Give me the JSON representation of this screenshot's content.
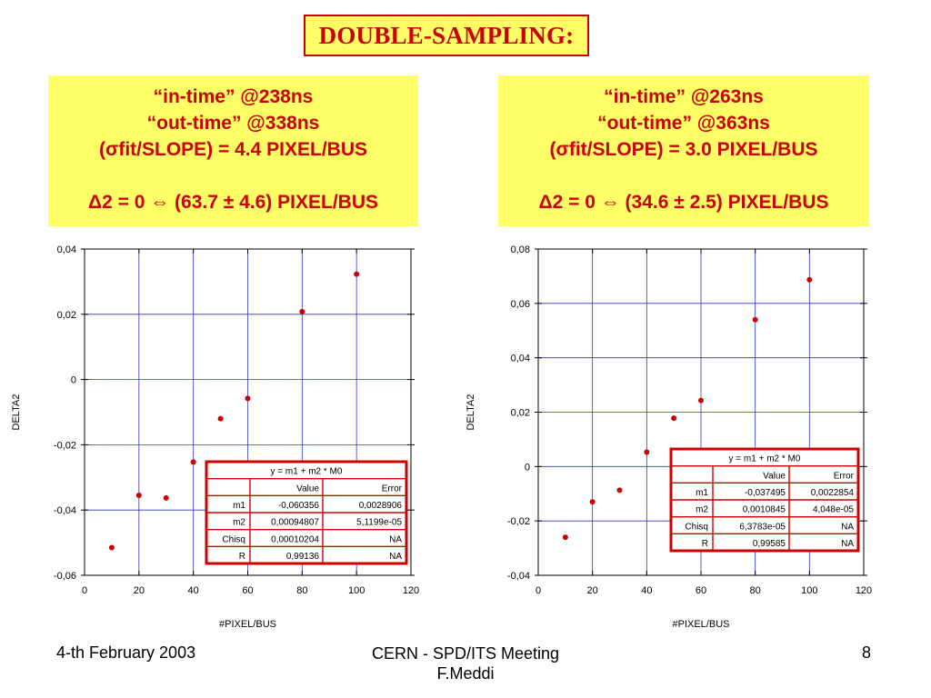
{
  "slide": {
    "title": "DOUBLE-SAMPLING:",
    "footer": {
      "date": "4-th February 2003",
      "meeting": "CERN - SPD/ITS Meeting",
      "author": "F.Meddi",
      "page": "8"
    }
  },
  "panels": [
    {
      "lines": [
        "“in-time” @238ns",
        "“out-time” @338ns",
        "(σfit/SLOPE) = 4.4 PIXEL/BUS"
      ],
      "result": "Δ2 = 0 ⇔ (63.7 ± 4.6) PIXEL/BUS",
      "fit_table": {
        "equation": "y = m1 + m2 * M0",
        "headers": [
          "",
          "Value",
          "Error"
        ],
        "rows": [
          [
            "m1",
            "-0,060356",
            "0,0028906"
          ],
          [
            "m2",
            "0,00094807",
            "5,1199e-05"
          ],
          [
            "Chisq",
            "0,00010204",
            "NA"
          ],
          [
            "R",
            "0,99136",
            "NA"
          ]
        ]
      }
    },
    {
      "lines": [
        "“in-time” @263ns",
        "“out-time” @363ns",
        "(σfit/SLOPE) = 3.0 PIXEL/BUS"
      ],
      "result": "Δ2 = 0 ⇔ (34.6 ± 2.5) PIXEL/BUS",
      "fit_table": {
        "equation": "y = m1 + m2 * M0",
        "headers": [
          "",
          "Value",
          "Error"
        ],
        "rows": [
          [
            "m1",
            "-0,037495",
            "0,0022854"
          ],
          [
            "m2",
            "0,0010845",
            "4,048e-05"
          ],
          [
            "Chisq",
            "6,3783e-05",
            "NA"
          ],
          [
            "R",
            "0,99585",
            "NA"
          ]
        ]
      }
    }
  ],
  "colors": {
    "accent": "#cc0000",
    "highlight": "#ffff66",
    "grid": "#3333cc",
    "marker": "#cc0000"
  },
  "chart_data": [
    {
      "type": "scatter",
      "xlabel": "#PIXEL/BUS",
      "ylabel": "DELTA2",
      "xlim": [
        0,
        120
      ],
      "ylim": [
        -0.06,
        0.04
      ],
      "xticks": [
        0,
        20,
        40,
        60,
        80,
        100,
        120
      ],
      "xtick_labels": [
        "0",
        "20",
        "40",
        "60",
        "80",
        "100",
        "120"
      ],
      "yticks": [
        -0.06,
        -0.04,
        -0.02,
        0,
        0.02,
        0.04
      ],
      "ytick_labels": [
        "-0,06",
        "-0,04",
        "-0,02",
        "0",
        "0,02",
        "0,04"
      ],
      "grid": true,
      "x": [
        10,
        20,
        30,
        40,
        50,
        60,
        80,
        100
      ],
      "y": [
        -0.0515,
        -0.0355,
        -0.0363,
        -0.0253,
        -0.012,
        -0.0058,
        0.0208,
        0.0323
      ]
    },
    {
      "type": "scatter",
      "xlabel": "#PIXEL/BUS",
      "ylabel": "DELTA2",
      "xlim": [
        0,
        120
      ],
      "ylim": [
        -0.04,
        0.08
      ],
      "xticks": [
        0,
        20,
        40,
        60,
        80,
        100,
        120
      ],
      "xtick_labels": [
        "0",
        "20",
        "40",
        "60",
        "80",
        "100",
        "120"
      ],
      "yticks": [
        -0.04,
        -0.02,
        0,
        0.02,
        0.04,
        0.06,
        0.08
      ],
      "ytick_labels": [
        "-0,04",
        "-0,02",
        "0",
        "0,02",
        "0,04",
        "0,06",
        "0,08"
      ],
      "grid": true,
      "x": [
        10,
        20,
        30,
        40,
        50,
        60,
        80,
        100
      ],
      "y": [
        -0.026,
        -0.013,
        -0.0087,
        0.0053,
        0.0178,
        0.0243,
        0.054,
        0.0687
      ]
    }
  ]
}
